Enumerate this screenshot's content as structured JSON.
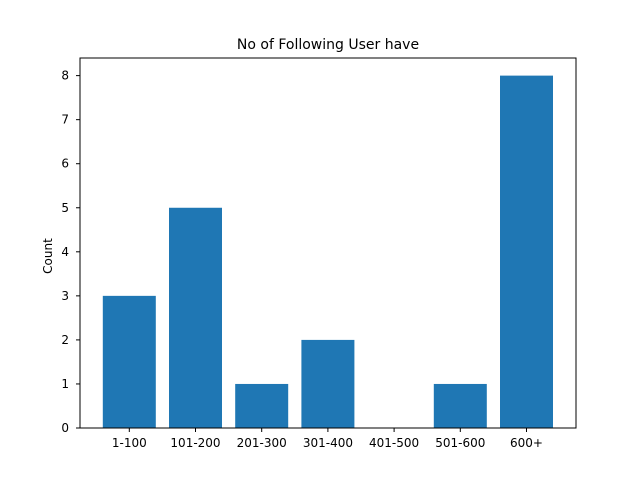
{
  "chart_data": {
    "type": "bar",
    "title": "No of Following User have",
    "xlabel": "",
    "ylabel": "Count",
    "categories": [
      "1-100",
      "101-200",
      "201-300",
      "301-400",
      "401-500",
      "501-600",
      "600+"
    ],
    "values": [
      3,
      5,
      1,
      2,
      0,
      1,
      8
    ],
    "ylim": [
      0,
      8.4
    ],
    "yticks": [
      0,
      1,
      2,
      3,
      4,
      5,
      6,
      7,
      8
    ],
    "bar_color": "#1f77b4",
    "grid": false
  }
}
